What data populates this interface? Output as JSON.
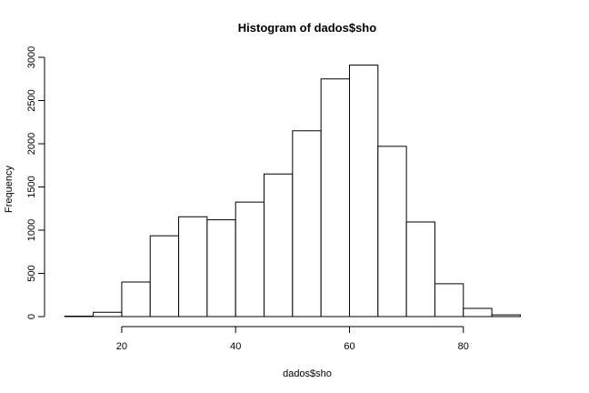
{
  "chart_data": {
    "type": "bar",
    "title": "Histogram of dados$sho",
    "xlabel": "dados$sho",
    "ylabel": "Frequency",
    "bin_edges": [
      10,
      15,
      20,
      25,
      30,
      35,
      40,
      45,
      50,
      55,
      60,
      65,
      70,
      75,
      80,
      85,
      90
    ],
    "values": [
      5,
      50,
      400,
      935,
      1155,
      1120,
      1325,
      1650,
      2150,
      2750,
      2910,
      1970,
      1095,
      380,
      95,
      20
    ],
    "xticks": [
      20,
      40,
      60,
      80
    ],
    "yticks": [
      0,
      500,
      1000,
      1500,
      2000,
      2500,
      3000
    ],
    "xlim": [
      8.2,
      95.2
    ],
    "ylim": [
      0,
      3000
    ],
    "grid": false,
    "colors": {
      "bar_fill": "#ffffff",
      "bar_stroke": "#000000"
    }
  }
}
